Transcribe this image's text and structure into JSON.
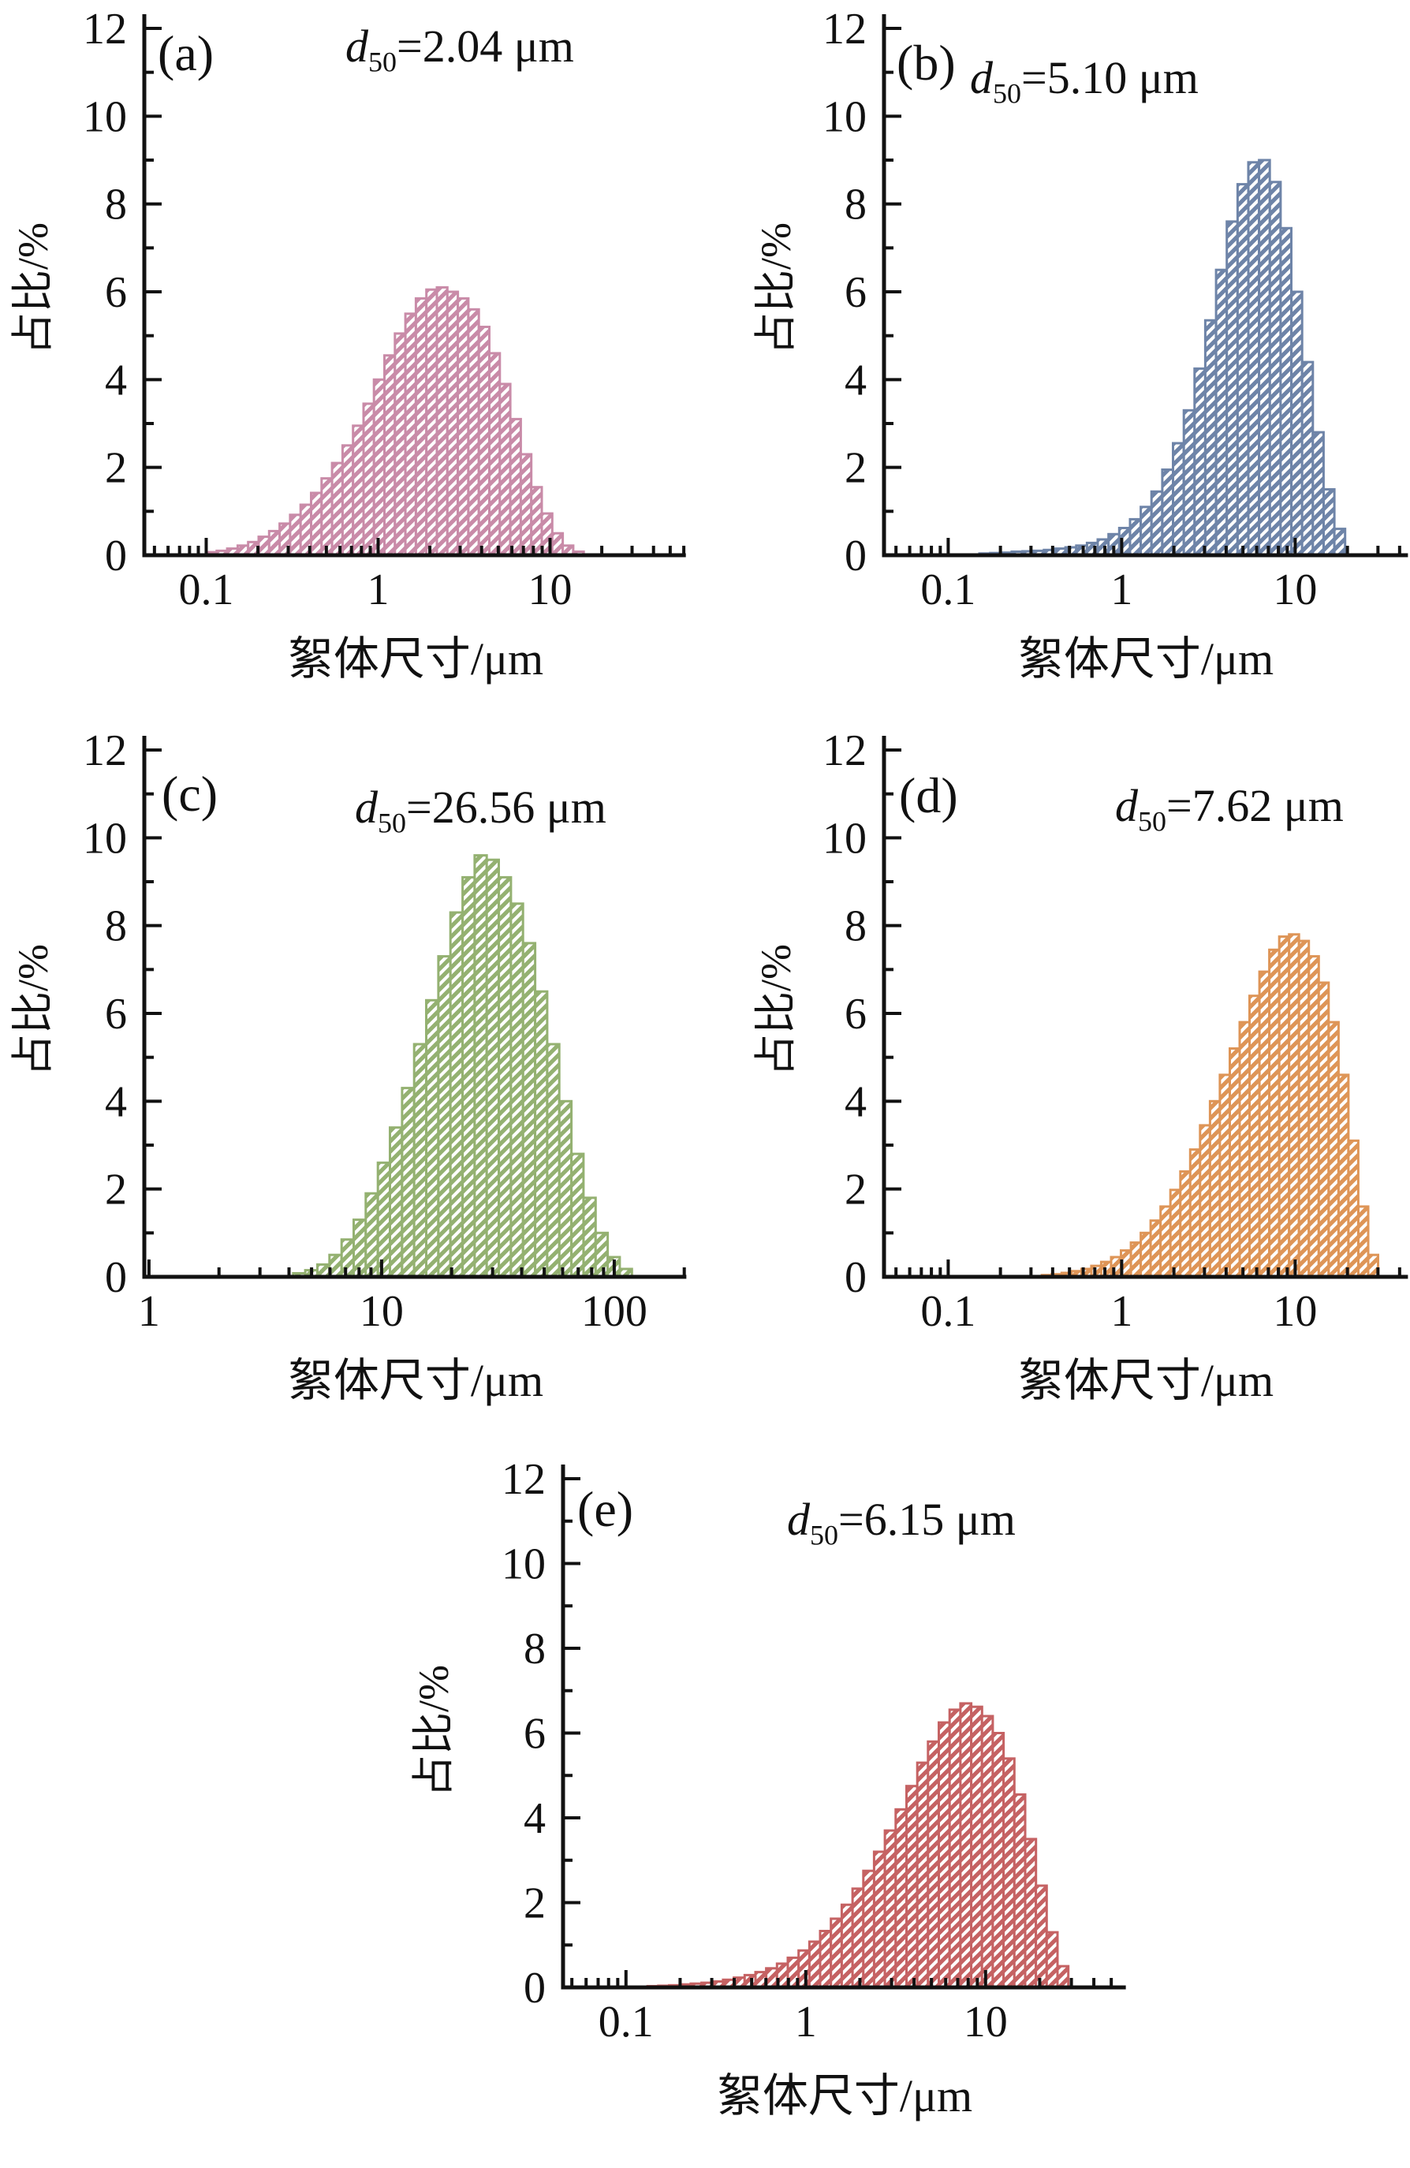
{
  "figure": {
    "type": "histogram-grid",
    "background": "#ffffff",
    "text_color": "#111111",
    "panel_count": 5
  },
  "chart_data": [
    {
      "id": "a",
      "type": "bar",
      "letter": "(a)",
      "annotation": {
        "sym": "d",
        "sub": "50",
        "rest": "=2.04 μm",
        "d50_um": 2.04
      },
      "xlabel": "絮体尺寸/μm",
      "ylabel": "占比/%",
      "color": "#c98ba8",
      "hatch": "diagonal-forward",
      "x_scale": "log",
      "xlim_log10": [
        -1.36,
        1.79
      ],
      "xticks": [
        {
          "log10": -1,
          "label": "0.1"
        },
        {
          "log10": 0,
          "label": "1"
        },
        {
          "log10": 1,
          "label": "10"
        }
      ],
      "ylim": [
        0,
        12
      ],
      "yticks": [
        0,
        2,
        4,
        6,
        8,
        10,
        12
      ],
      "bins_log10_start": -1.0,
      "bin_log10_width": 0.061,
      "values": [
        0.07,
        0.1,
        0.15,
        0.22,
        0.3,
        0.42,
        0.55,
        0.72,
        0.92,
        1.15,
        1.42,
        1.75,
        2.1,
        2.5,
        2.95,
        3.45,
        4.0,
        4.55,
        5.05,
        5.5,
        5.85,
        6.05,
        6.1,
        6.0,
        5.85,
        5.6,
        5.2,
        4.6,
        3.9,
        3.1,
        2.3,
        1.55,
        0.95,
        0.5,
        0.22,
        0.08
      ]
    },
    {
      "id": "b",
      "type": "bar",
      "letter": "(b)",
      "annotation": {
        "sym": "d",
        "sub": "50",
        "rest": "=5.10 μm",
        "d50_um": 5.1
      },
      "xlabel": "絮体尺寸/μm",
      "ylabel": "占比/%",
      "color": "#6e84a8",
      "hatch": "diagonal-forward",
      "x_scale": "log",
      "xlim_log10": [
        -1.37,
        1.65
      ],
      "xticks": [
        {
          "log10": -1,
          "label": "0.1"
        },
        {
          "log10": 0,
          "label": "1"
        },
        {
          "log10": 1,
          "label": "10"
        }
      ],
      "ylim": [
        0,
        12
      ],
      "yticks": [
        0,
        2,
        4,
        6,
        8,
        10,
        12
      ],
      "bins_log10_start": -0.82,
      "bin_log10_width": 0.062,
      "values": [
        0.04,
        0.05,
        0.06,
        0.08,
        0.09,
        0.1,
        0.12,
        0.15,
        0.18,
        0.22,
        0.28,
        0.36,
        0.48,
        0.62,
        0.82,
        1.1,
        1.45,
        1.95,
        2.55,
        3.3,
        4.25,
        5.35,
        6.5,
        7.6,
        8.45,
        8.95,
        9.0,
        8.5,
        7.45,
        6.0,
        4.4,
        2.8,
        1.5,
        0.6
      ]
    },
    {
      "id": "c",
      "type": "bar",
      "letter": "(c)",
      "annotation": {
        "sym": "d",
        "sub": "50",
        "rest": "=26.56 μm",
        "d50_um": 26.56
      },
      "xlabel": "絮体尺寸/μm",
      "ylabel": "占比/%",
      "color": "#94b171",
      "hatch": "diagonal-forward",
      "x_scale": "log",
      "xlim_log10": [
        -0.02,
        2.31
      ],
      "xticks": [
        {
          "log10": 0,
          "label": "1"
        },
        {
          "log10": 1,
          "label": "10"
        },
        {
          "log10": 2,
          "label": "100"
        }
      ],
      "ylim": [
        0,
        12
      ],
      "yticks": [
        0,
        2,
        4,
        6,
        8,
        10,
        12
      ],
      "bins_log10_start": 0.62,
      "bin_log10_width": 0.052,
      "values": [
        0.08,
        0.15,
        0.28,
        0.5,
        0.85,
        1.3,
        1.9,
        2.6,
        3.4,
        4.3,
        5.3,
        6.3,
        7.3,
        8.3,
        9.1,
        9.6,
        9.5,
        9.1,
        8.5,
        7.6,
        6.5,
        5.3,
        4.0,
        2.8,
        1.8,
        1.0,
        0.45,
        0.18
      ]
    },
    {
      "id": "d",
      "type": "bar",
      "letter": "(d)",
      "annotation": {
        "sym": "d",
        "sub": "50",
        "rest": "=7.62 μm",
        "d50_um": 7.62
      },
      "xlabel": "絮体尺寸/μm",
      "ylabel": "占比/%",
      "color": "#de9557",
      "hatch": "diagonal-forward",
      "x_scale": "log",
      "xlim_log10": [
        -1.37,
        1.65
      ],
      "xticks": [
        {
          "log10": -1,
          "label": "0.1"
        },
        {
          "log10": 0,
          "label": "1"
        },
        {
          "log10": 1,
          "label": "10"
        }
      ],
      "ylim": [
        0,
        12
      ],
      "yticks": [
        0,
        2,
        4,
        6,
        8,
        10,
        12
      ],
      "bins_log10_start": -0.46,
      "bin_log10_width": 0.057,
      "values": [
        0.04,
        0.06,
        0.09,
        0.13,
        0.18,
        0.25,
        0.34,
        0.45,
        0.6,
        0.78,
        1.0,
        1.28,
        1.6,
        1.98,
        2.4,
        2.9,
        3.45,
        4.0,
        4.6,
        5.2,
        5.8,
        6.4,
        6.95,
        7.45,
        7.75,
        7.8,
        7.65,
        7.3,
        6.7,
        5.8,
        4.6,
        3.1,
        1.6,
        0.5
      ]
    },
    {
      "id": "e",
      "type": "bar",
      "letter": "(e)",
      "annotation": {
        "sym": "d",
        "sub": "50",
        "rest": "=6.15 μm",
        "d50_um": 6.15
      },
      "xlabel": "絮体尺寸/μm",
      "ylabel": "占比/%",
      "color": "#c56263",
      "hatch": "diagonal-forward",
      "x_scale": "log",
      "xlim_log10": [
        -1.35,
        1.78
      ],
      "xticks": [
        {
          "log10": -1,
          "label": "0.1"
        },
        {
          "log10": 0,
          "label": "1"
        },
        {
          "log10": 1,
          "label": "10"
        }
      ],
      "ylim": [
        0,
        12
      ],
      "yticks": [
        0,
        2,
        4,
        6,
        8,
        10,
        12
      ],
      "bins_log10_start": -0.88,
      "bin_log10_width": 0.06,
      "values": [
        0.03,
        0.04,
        0.05,
        0.07,
        0.09,
        0.11,
        0.14,
        0.18,
        0.23,
        0.29,
        0.36,
        0.45,
        0.56,
        0.7,
        0.87,
        1.08,
        1.33,
        1.62,
        1.95,
        2.33,
        2.75,
        3.2,
        3.7,
        4.2,
        4.75,
        5.3,
        5.8,
        6.25,
        6.55,
        6.7,
        6.62,
        6.4,
        6.0,
        5.4,
        4.55,
        3.5,
        2.4,
        1.3,
        0.5
      ]
    }
  ]
}
